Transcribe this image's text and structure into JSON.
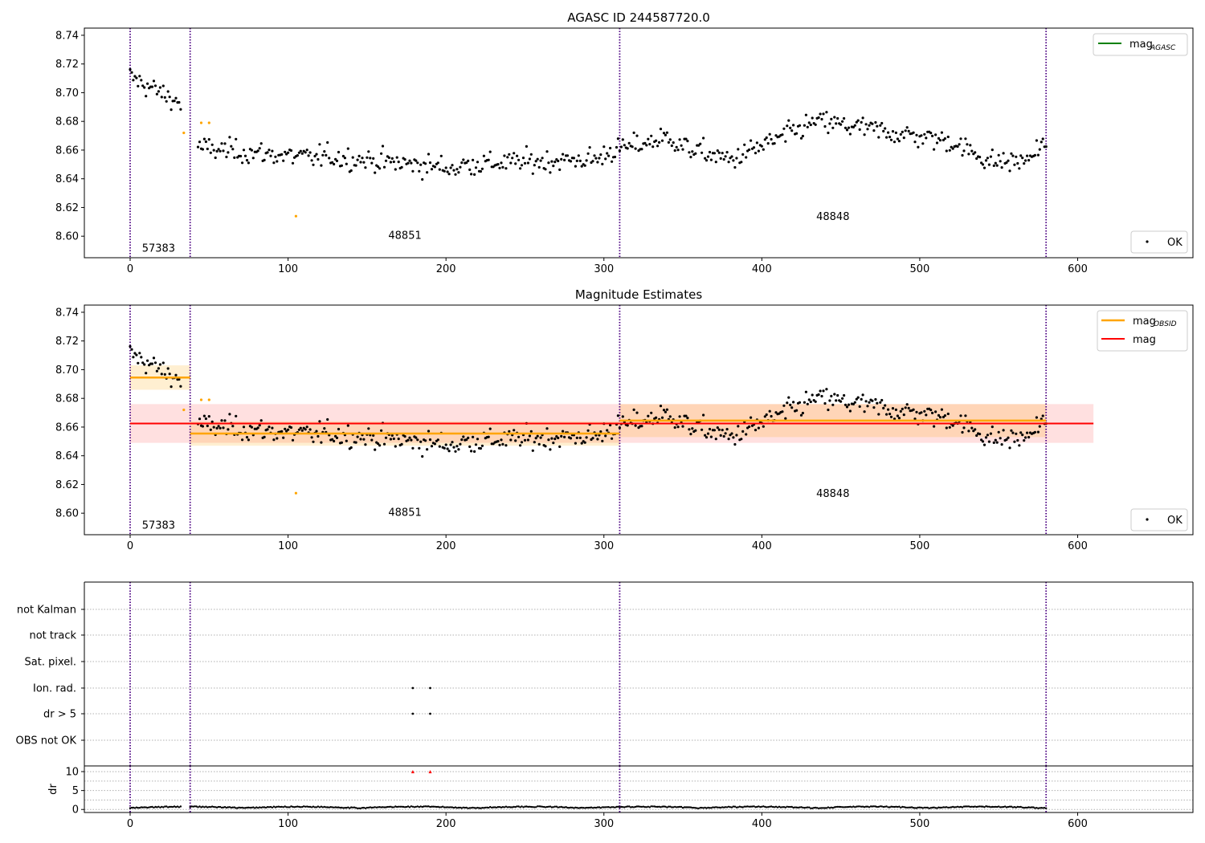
{
  "figure": {
    "title": "AGASC ID 244587720.0"
  },
  "chart_data": [
    {
      "type": "scatter",
      "title": "",
      "xlim": [
        -29,
        673
      ],
      "ylim": [
        8.585,
        8.745
      ],
      "xticks": [
        0,
        100,
        200,
        300,
        400,
        500,
        600
      ],
      "yticks": [
        8.6,
        8.62,
        8.64,
        8.66,
        8.68,
        8.7,
        8.72,
        8.74
      ],
      "ytick_labels": [
        "8.60",
        "8.62",
        "8.64",
        "8.66",
        "8.68",
        "8.70",
        "8.72",
        "8.74"
      ],
      "obsid_boundaries": [
        0,
        38,
        310,
        580
      ],
      "obsid_labels": [
        {
          "text": "57383",
          "x": 18,
          "y": 8.592
        },
        {
          "text": "48851",
          "x": 174,
          "y": 8.601
        },
        {
          "text": "48848",
          "x": 445,
          "y": 8.614
        }
      ],
      "legend_top": {
        "label": "mag",
        "sub": "AGASC",
        "color": "#008000",
        "placement": "upper right"
      },
      "legend_bottom": {
        "label": "OK",
        "placement": "lower right"
      },
      "colors": {
        "ok": "#000000",
        "flagged": "#ffa500",
        "boundary": "#4b0082"
      }
    },
    {
      "type": "scatter",
      "title": "Magnitude Estimates",
      "xlim": [
        -29,
        673
      ],
      "ylim": [
        8.585,
        8.745
      ],
      "xticks": [
        0,
        100,
        200,
        300,
        400,
        500,
        600
      ],
      "yticks": [
        8.6,
        8.62,
        8.64,
        8.66,
        8.68,
        8.7,
        8.72,
        8.74
      ],
      "ytick_labels": [
        "8.60",
        "8.62",
        "8.64",
        "8.66",
        "8.68",
        "8.70",
        "8.72",
        "8.74"
      ],
      "obsid_boundaries": [
        0,
        38,
        310,
        580
      ],
      "obsid_labels": [
        {
          "text": "57383",
          "x": 18,
          "y": 8.592
        },
        {
          "text": "48851",
          "x": 174,
          "y": 8.601
        },
        {
          "text": "48848",
          "x": 445,
          "y": 8.614
        }
      ],
      "obsid_estimates": [
        {
          "x0": 0,
          "x1": 38,
          "mean": 8.6945,
          "lo": 8.686,
          "hi": 8.703
        },
        {
          "x0": 38,
          "x1": 310,
          "mean": 8.6555,
          "lo": 8.647,
          "hi": 8.664
        },
        {
          "x0": 310,
          "x1": 580,
          "mean": 8.6645,
          "lo": 8.653,
          "hi": 8.676
        }
      ],
      "global_estimate": {
        "x0": 0,
        "x1": 610,
        "mean": 8.6625,
        "lo": 8.649,
        "hi": 8.676
      },
      "legend_top": [
        {
          "label": "mag",
          "sub": "OBSID",
          "color": "#ffa500"
        },
        {
          "label": "mag",
          "sub": "",
          "color": "#ff0000"
        }
      ],
      "legend_bottom": {
        "label": "OK",
        "placement": "lower right"
      },
      "colors": {
        "ok": "#000000",
        "flagged": "#ffa500",
        "boundary": "#4b0082",
        "obsid": "#ffa500",
        "global": "#ff0000"
      }
    },
    {
      "type": "scatter",
      "title": "",
      "xlim": [
        -29,
        673
      ],
      "flag_labels": [
        "not Kalman",
        "not track",
        "Sat. pixel.",
        "Ion. rad.",
        "dr > 5",
        "OBS not OK"
      ],
      "flag_points": [
        {
          "flag": "Ion. rad.",
          "x": [
            179,
            190
          ]
        },
        {
          "flag": "dr > 5",
          "x": [
            179,
            190
          ]
        }
      ],
      "obsid_boundaries": [
        0,
        38,
        310,
        580
      ]
    },
    {
      "type": "scatter",
      "title": "",
      "ylabel": "dr",
      "xlim": [
        -29,
        673
      ],
      "ylim": [
        -0.8,
        11.5
      ],
      "xticks": [
        0,
        100,
        200,
        300,
        400,
        500,
        600
      ],
      "yticks": [
        0,
        5,
        10
      ],
      "clipped_points_x": [
        179,
        190
      ],
      "clipped_value": 10,
      "obsid_boundaries": [
        0,
        38,
        310,
        580
      ],
      "colors": {
        "points": "#000000",
        "clipped": "#ff0000"
      }
    }
  ]
}
